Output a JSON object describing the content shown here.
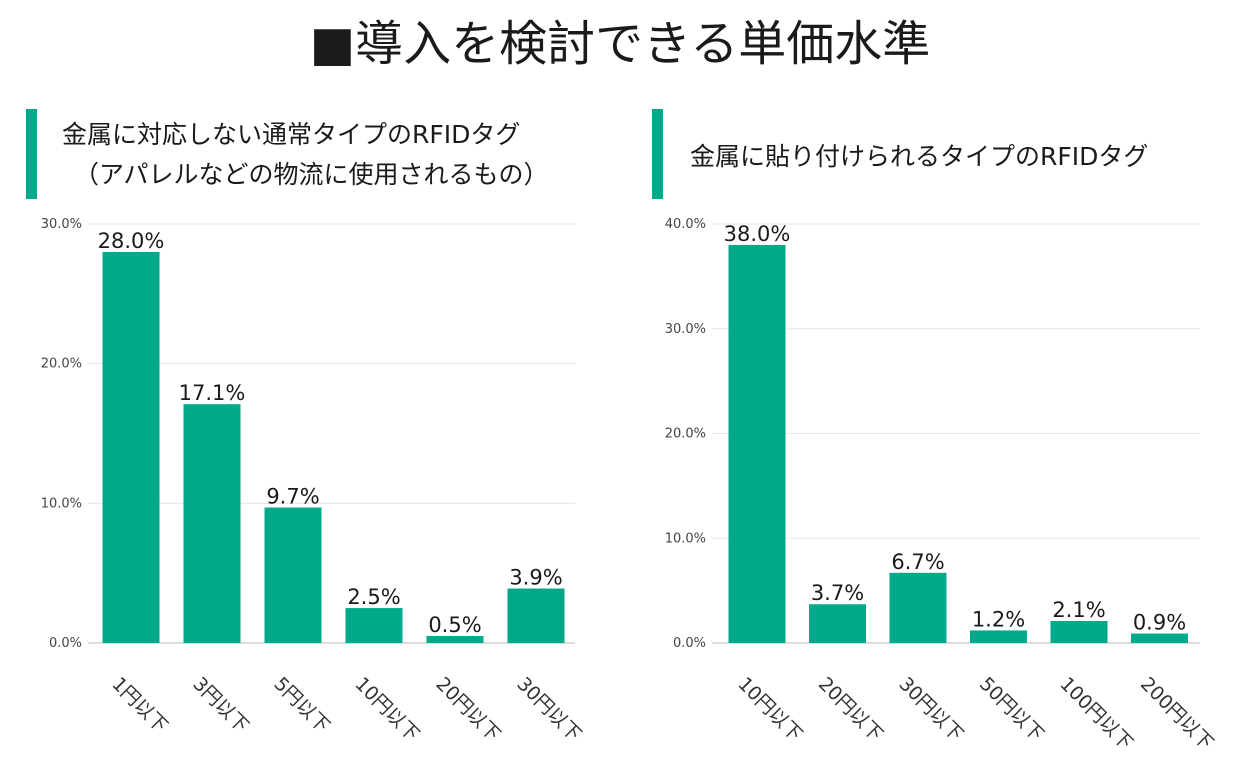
{
  "page": {
    "title": "■導入を検討できる単価水準",
    "accent_color": "#00a98a"
  },
  "panels": [
    {
      "title_lines": [
        "金属に対応しない通常タイプのRFIDタグ",
        "（アパレルなどの物流に使用されるもの）"
      ]
    },
    {
      "title_lines": [
        "金属に貼り付けられるタイプのRFIDタグ"
      ]
    }
  ],
  "chart_data": [
    {
      "type": "bar",
      "categories": [
        "1円以下",
        "3円以下",
        "5円以下",
        "10円以下",
        "20円以下",
        "30円以下"
      ],
      "values": [
        28.0,
        17.1,
        9.7,
        2.5,
        0.5,
        3.9
      ],
      "data_labels": [
        "28.0%",
        "17.1%",
        "9.7%",
        "2.5%",
        "0.5%",
        "3.9%"
      ],
      "yticks": [
        0,
        10,
        20,
        30
      ],
      "ytick_labels": [
        "0.0%",
        "10.0%",
        "20.0%",
        "30.0%"
      ],
      "ylim": [
        0,
        30
      ],
      "grid": true,
      "bar_color": "#00a98a",
      "title": "",
      "xlabel": "",
      "ylabel": ""
    },
    {
      "type": "bar",
      "categories": [
        "10円以下",
        "20円以下",
        "30円以下",
        "50円以下",
        "100円以下",
        "200円以下"
      ],
      "values": [
        38.0,
        3.7,
        6.7,
        1.2,
        2.1,
        0.9
      ],
      "data_labels": [
        "38.0%",
        "3.7%",
        "6.7%",
        "1.2%",
        "2.1%",
        "0.9%"
      ],
      "yticks": [
        0,
        10,
        20,
        30,
        40
      ],
      "ytick_labels": [
        "0.0%",
        "10.0%",
        "20.0%",
        "30.0%",
        "40.0%"
      ],
      "ylim": [
        0,
        40
      ],
      "grid": true,
      "bar_color": "#00a98a",
      "title": "",
      "xlabel": "",
      "ylabel": ""
    }
  ]
}
